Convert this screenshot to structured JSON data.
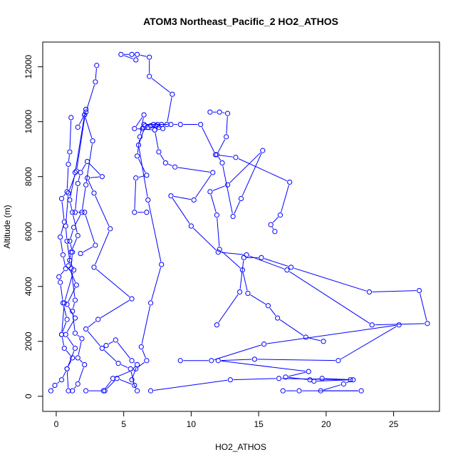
{
  "chart_data": {
    "type": "line",
    "title": "ATOM3 Northeast_Pacific_2 HO2_ATHOS",
    "xlabel": "HO2_ATHOS",
    "ylabel": "Altitude (m)",
    "xlim": [
      -1.0,
      28.4
    ],
    "ylim": [
      -550,
      12900
    ],
    "x_ticks": [
      0,
      5,
      10,
      15,
      20,
      25
    ],
    "y_ticks": [
      0,
      2000,
      4000,
      6000,
      8000,
      10000,
      12000
    ],
    "grid": false,
    "legend": "none",
    "marker": "open-circle",
    "color": "#0000ff",
    "series": [
      {
        "values": [
          [
            -0.4,
            200
          ],
          [
            -0.1,
            400
          ],
          [
            0.4,
            600
          ],
          [
            0.8,
            1000
          ],
          [
            1.2,
            1400
          ],
          [
            0.6,
            1750
          ],
          [
            0.4,
            2250
          ],
          [
            0.8,
            2800
          ],
          [
            0.5,
            3400
          ],
          [
            0.3,
            4150
          ],
          [
            0.2,
            4350
          ],
          [
            0.7,
            4650
          ],
          [
            0.5,
            5150
          ],
          [
            0.3,
            5800
          ],
          [
            0.6,
            6350
          ],
          [
            0.4,
            7200
          ],
          [
            0.8,
            7450
          ],
          [
            0.9,
            8450
          ],
          [
            1.0,
            8900
          ],
          [
            1.1,
            10150
          ]
        ]
      },
      {
        "values": [
          [
            0.9,
            200
          ],
          [
            0.8,
            1000
          ],
          [
            1.4,
            1750
          ],
          [
            0.7,
            2250
          ],
          [
            1.4,
            2850
          ],
          [
            0.8,
            3350
          ],
          [
            1.5,
            4050
          ],
          [
            0.9,
            4750
          ],
          [
            1.1,
            5250
          ],
          [
            1.6,
            5850
          ],
          [
            1.2,
            6700
          ],
          [
            1.0,
            7150
          ],
          [
            1.4,
            8150
          ],
          [
            2.1,
            10250
          ],
          [
            2.2,
            10450
          ],
          [
            1.5,
            8200
          ],
          [
            0.9,
            7400
          ],
          [
            0.7,
            6200
          ],
          [
            0.8,
            5650
          ],
          [
            1.0,
            4950
          ],
          [
            1.3,
            4600
          ],
          [
            0.6,
            3400
          ],
          [
            0.4,
            2250
          ]
        ]
      },
      {
        "values": [
          [
            1.2,
            200
          ],
          [
            1.6,
            450
          ],
          [
            2.1,
            1150
          ],
          [
            1.6,
            1400
          ],
          [
            1.9,
            2100
          ],
          [
            1.4,
            2300
          ],
          [
            1.2,
            3100
          ],
          [
            1.4,
            3500
          ],
          [
            1.1,
            4650
          ],
          [
            1.2,
            5250
          ],
          [
            1.0,
            5650
          ],
          [
            1.3,
            6150
          ],
          [
            1.9,
            6700
          ],
          [
            2.2,
            7700
          ],
          [
            2.7,
            9300
          ],
          [
            2.1,
            10250
          ]
        ]
      },
      {
        "values": [
          [
            2.2,
            200
          ],
          [
            3.6,
            200
          ],
          [
            4.5,
            650
          ],
          [
            5.8,
            400
          ],
          [
            5.5,
            1000
          ],
          [
            4.6,
            1200
          ],
          [
            3.4,
            1750
          ],
          [
            2.2,
            2450
          ],
          [
            3.1,
            2800
          ],
          [
            5.6,
            3550
          ],
          [
            2.8,
            4700
          ],
          [
            4.0,
            6100
          ],
          [
            2.8,
            7400
          ],
          [
            2.3,
            7950
          ],
          [
            3.4,
            8000
          ],
          [
            2.3,
            8550
          ],
          [
            1.8,
            8150
          ],
          [
            1.6,
            7750
          ],
          [
            1.4,
            6700
          ],
          [
            2.1,
            6700
          ],
          [
            2.9,
            5500
          ],
          [
            1.8,
            5200
          ]
        ]
      },
      {
        "values": [
          [
            3.0,
            12050
          ],
          [
            2.9,
            11450
          ],
          [
            2.2,
            10350
          ],
          [
            1.6,
            9800
          ]
        ]
      },
      {
        "values": [
          [
            3.7,
            1850
          ],
          [
            4.4,
            2050
          ],
          [
            5.6,
            1300
          ],
          [
            6.0,
            1150
          ],
          [
            5.6,
            600
          ],
          [
            6.0,
            200
          ]
        ]
      },
      {
        "values": [
          [
            5.9,
            12250
          ],
          [
            4.8,
            12450
          ],
          [
            5.6,
            12450
          ],
          [
            6.0,
            12450
          ],
          [
            6.9,
            12350
          ],
          [
            6.9,
            11650
          ],
          [
            8.6,
            11000
          ],
          [
            8.2,
            9900
          ],
          [
            7.5,
            9900
          ],
          [
            7.8,
            9900
          ],
          [
            6.5,
            9900
          ],
          [
            7.2,
            9900
          ],
          [
            8.5,
            9900
          ],
          [
            9.2,
            9900
          ],
          [
            10.7,
            9900
          ],
          [
            11.8,
            8800
          ],
          [
            13.3,
            8700
          ],
          [
            17.3,
            7800
          ],
          [
            16.6,
            6600
          ],
          [
            15.9,
            6250
          ],
          [
            16.2,
            6000
          ]
        ]
      },
      {
        "values": [
          [
            6.4,
            9750
          ],
          [
            6.8,
            9800
          ],
          [
            7.6,
            9800
          ],
          [
            7.9,
            9750
          ],
          [
            7.4,
            9850
          ],
          [
            7.0,
            9850
          ],
          [
            7.3,
            9700
          ],
          [
            5.8,
            9750
          ],
          [
            6.5,
            10250
          ],
          [
            6.2,
            9450
          ],
          [
            6.0,
            8750
          ],
          [
            6.7,
            8050
          ],
          [
            5.9,
            7950
          ],
          [
            5.8,
            6700
          ],
          [
            6.7,
            6700
          ]
        ]
      },
      {
        "values": [
          [
            11.4,
            10350
          ],
          [
            12.1,
            10350
          ],
          [
            12.7,
            10300
          ],
          [
            12.6,
            9450
          ],
          [
            11.9,
            8800
          ],
          [
            12.3,
            8500
          ],
          [
            13.1,
            6550
          ],
          [
            13.7,
            7200
          ],
          [
            15.3,
            8950
          ],
          [
            12.7,
            7700
          ],
          [
            11.4,
            7450
          ],
          [
            11.9,
            6600
          ],
          [
            12.1,
            5350
          ],
          [
            13.8,
            4600
          ],
          [
            14.2,
            3750
          ],
          [
            15.7,
            3300
          ],
          [
            16.4,
            2850
          ],
          [
            18.5,
            2150
          ],
          [
            19.8,
            2000
          ]
        ]
      },
      {
        "values": [
          [
            11.9,
            2600
          ],
          [
            13.6,
            3800
          ],
          [
            13.9,
            5050
          ],
          [
            15.2,
            5050
          ],
          [
            17.4,
            4700
          ],
          [
            23.2,
            3800
          ],
          [
            26.9,
            3850
          ],
          [
            27.5,
            2650
          ],
          [
            23.4,
            2600
          ],
          [
            17.1,
            4600
          ],
          [
            14.1,
            5150
          ],
          [
            12.0,
            5250
          ],
          [
            10.0,
            6200
          ],
          [
            8.5,
            7300
          ],
          [
            10.2,
            7150
          ],
          [
            11.6,
            8150
          ],
          [
            8.8,
            8350
          ],
          [
            8.1,
            8500
          ],
          [
            7.6,
            8900
          ],
          [
            7.3,
            9700
          ]
        ]
      },
      {
        "values": [
          [
            9.2,
            1300
          ],
          [
            11.5,
            1300
          ],
          [
            15.4,
            1900
          ],
          [
            25.4,
            2600
          ],
          [
            20.9,
            1300
          ],
          [
            14.7,
            1350
          ],
          [
            12.0,
            1300
          ],
          [
            18.7,
            900
          ],
          [
            17.0,
            700
          ],
          [
            18.8,
            600
          ],
          [
            19.7,
            650
          ],
          [
            22.0,
            600
          ],
          [
            21.3,
            450
          ],
          [
            19.6,
            200
          ],
          [
            22.6,
            200
          ],
          [
            18.0,
            200
          ],
          [
            16.8,
            200
          ]
        ]
      },
      {
        "values": [
          [
            7.0,
            200
          ],
          [
            12.9,
            600
          ],
          [
            16.5,
            650
          ],
          [
            21.8,
            600
          ],
          [
            19.1,
            550
          ]
        ]
      },
      {
        "values": [
          [
            3.5,
            200
          ],
          [
            4.2,
            650
          ],
          [
            5.9,
            1000
          ],
          [
            6.7,
            1300
          ],
          [
            6.3,
            1800
          ],
          [
            7.0,
            3400
          ],
          [
            7.8,
            4800
          ],
          [
            6.8,
            7150
          ],
          [
            6.1,
            9150
          ],
          [
            6.6,
            9850
          ]
        ]
      }
    ]
  }
}
